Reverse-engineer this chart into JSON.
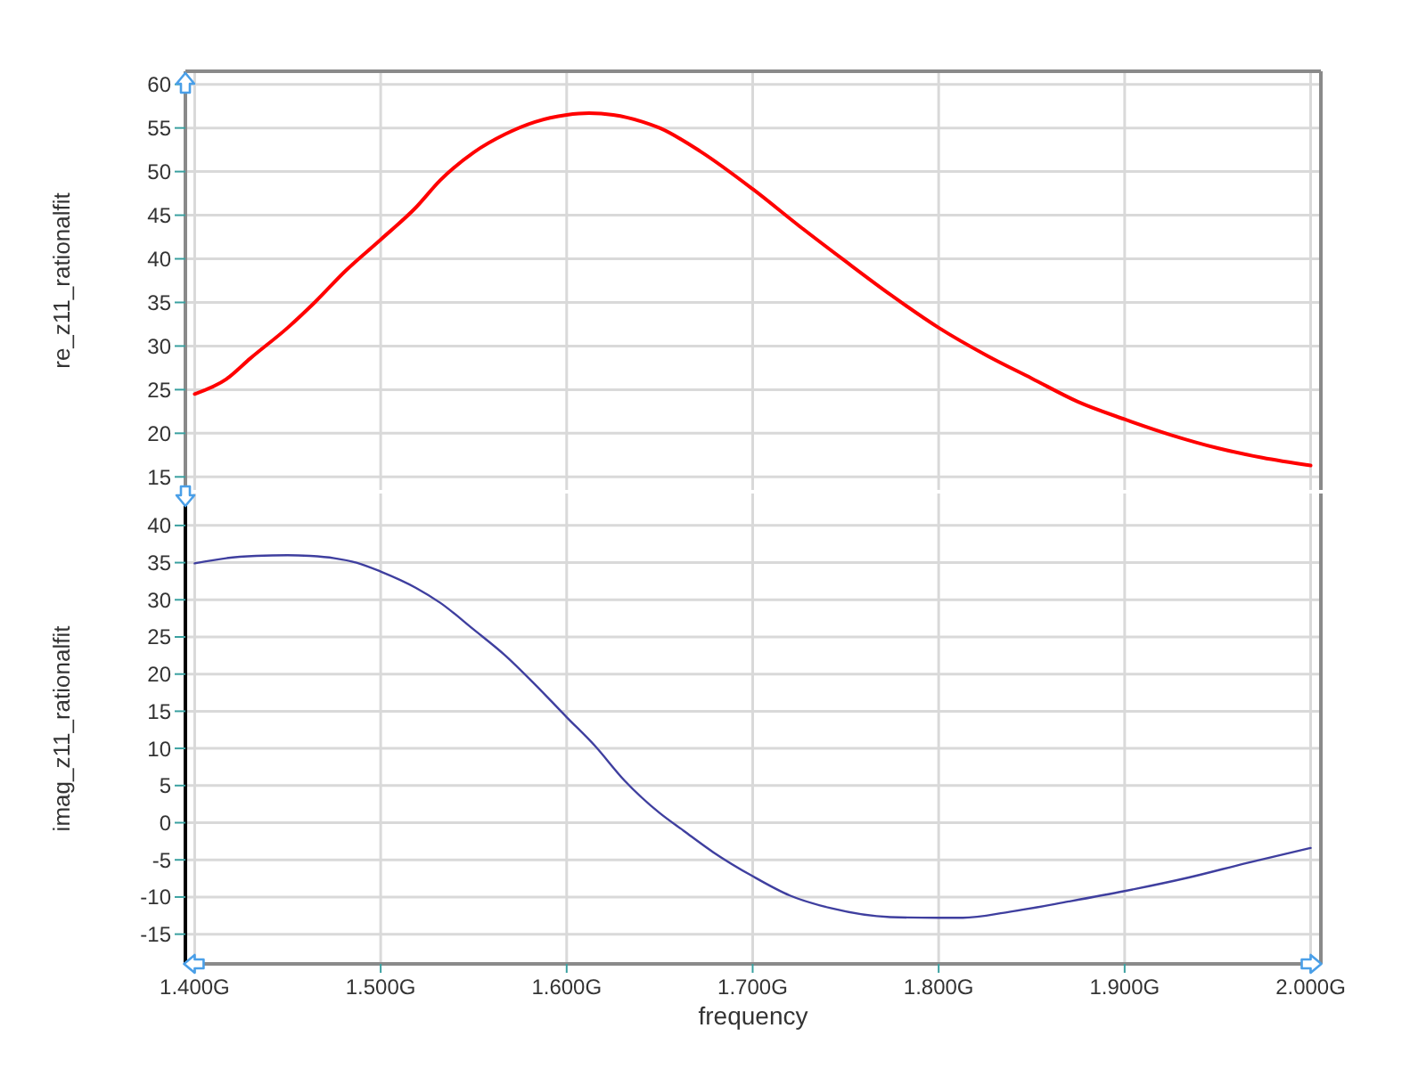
{
  "chart_data": [
    {
      "type": "line",
      "ylabel": "re_z11_rationalfit",
      "xlim": [
        1.395,
        2.0055
      ],
      "xticks": [
        {
          "value": 1.4,
          "label": null
        },
        {
          "value": 1.5,
          "label": null
        },
        {
          "value": 1.6,
          "label": null
        },
        {
          "value": 1.7,
          "label": null
        },
        {
          "value": 1.8,
          "label": null
        },
        {
          "value": 1.9,
          "label": null
        },
        {
          "value": 2.0,
          "label": null
        }
      ],
      "ylim": [
        13.5,
        61.5
      ],
      "yticks": [
        15,
        20,
        25,
        30,
        35,
        40,
        45,
        50,
        55,
        60
      ],
      "grid": true,
      "tick_labels": "y",
      "series": [
        {
          "color": "#ff0000",
          "x": [
            1.4,
            1.417,
            1.43,
            1.45,
            1.465,
            1.481,
            1.5,
            1.519,
            1.532,
            1.55,
            1.567,
            1.583,
            1.6,
            1.612,
            1.625,
            1.641,
            1.65,
            1.672,
            1.7,
            1.726,
            1.75,
            1.774,
            1.8,
            1.826,
            1.85,
            1.875,
            1.9,
            1.925,
            1.95,
            1.974,
            2.0
          ],
          "values": [
            24.5,
            26.2,
            28.6,
            32.1,
            35.1,
            38.6,
            42.2,
            45.9,
            49.0,
            52.2,
            54.3,
            55.7,
            56.5,
            56.7,
            56.5,
            55.7,
            55.0,
            52.3,
            48.0,
            43.6,
            39.7,
            35.9,
            32.1,
            28.9,
            26.3,
            23.6,
            21.6,
            19.8,
            18.3,
            17.2,
            16.3
          ]
        }
      ]
    },
    {
      "type": "line",
      "xlabel": "frequency",
      "ylabel": "imag_z11_rationalfit",
      "xlim": [
        1.395,
        2.0055
      ],
      "xticks": [
        {
          "value": 1.4,
          "label": "1.400G"
        },
        {
          "value": 1.5,
          "label": "1.500G"
        },
        {
          "value": 1.6,
          "label": "1.600G"
        },
        {
          "value": 1.7,
          "label": "1.700G"
        },
        {
          "value": 1.8,
          "label": "1.800G"
        },
        {
          "value": 1.9,
          "label": "1.900G"
        },
        {
          "value": 2.0,
          "label": "2.000G"
        }
      ],
      "ylim": [
        -19,
        44.3
      ],
      "yticks": [
        -15,
        -10,
        -5,
        0,
        5,
        10,
        15,
        20,
        25,
        30,
        35,
        40
      ],
      "grid": true,
      "series": [
        {
          "color": "#3f3f9f",
          "x": [
            1.4,
            1.417,
            1.433,
            1.45,
            1.462,
            1.475,
            1.487,
            1.5,
            1.519,
            1.532,
            1.55,
            1.567,
            1.583,
            1.6,
            1.615,
            1.631,
            1.65,
            1.663,
            1.679,
            1.7,
            1.72,
            1.742,
            1.774,
            1.8,
            1.813,
            1.838,
            1.87,
            1.9,
            1.934,
            1.966,
            2.0
          ],
          "values": [
            34.9,
            35.6,
            35.9,
            36.0,
            35.9,
            35.6,
            35.0,
            33.8,
            31.6,
            29.6,
            26.0,
            22.5,
            18.6,
            14.2,
            10.4,
            5.7,
            1.3,
            -1.1,
            -4.0,
            -7.2,
            -9.8,
            -11.5,
            -12.7,
            -12.8,
            -12.8,
            -12.0,
            -10.6,
            -9.2,
            -7.4,
            -5.4,
            -3.4
          ]
        }
      ]
    }
  ]
}
